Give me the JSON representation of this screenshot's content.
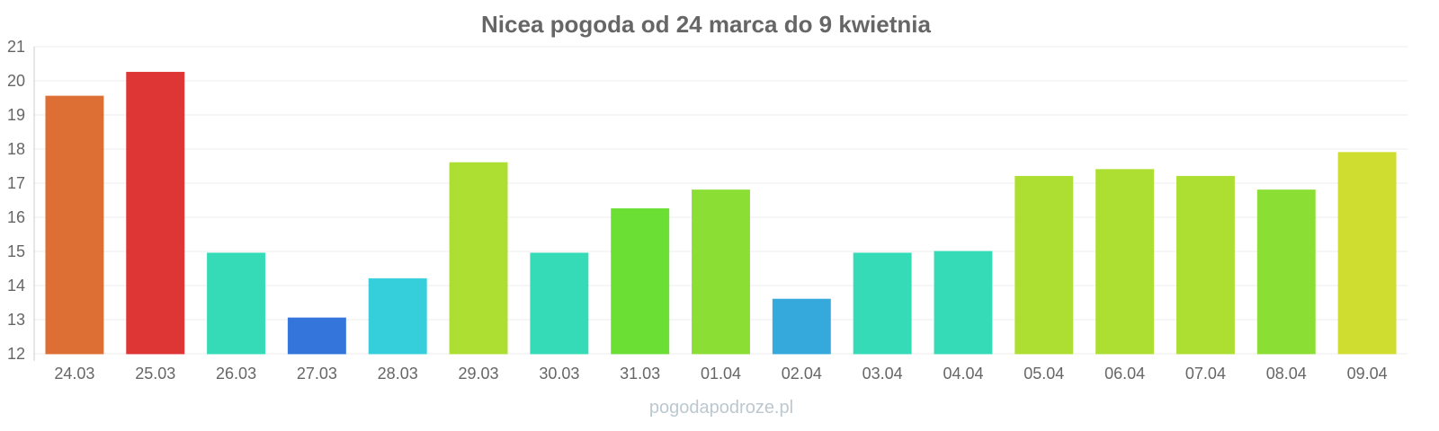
{
  "chart_data": {
    "type": "bar",
    "title": "Nicea pogoda od 24 marca do 9 kwietnia",
    "xlabel": "",
    "ylabel": "",
    "ylim": [
      12,
      21
    ],
    "yticks": [
      12,
      13,
      14,
      15,
      16,
      17,
      18,
      19,
      20,
      21
    ],
    "grid": true,
    "categories": [
      "24.03",
      "25.03",
      "26.03",
      "27.03",
      "28.03",
      "29.03",
      "30.03",
      "31.03",
      "01.04",
      "02.04",
      "03.04",
      "04.04",
      "05.04",
      "06.04",
      "07.04",
      "08.04",
      "09.04"
    ],
    "values": [
      19.55,
      20.25,
      14.95,
      13.05,
      14.2,
      17.6,
      14.95,
      16.25,
      16.8,
      13.6,
      14.95,
      15.0,
      17.2,
      17.4,
      17.2,
      16.8,
      17.9
    ],
    "colors": [
      "#de6f34",
      "#de3535",
      "#35dbb7",
      "#3475dc",
      "#35cfdb",
      "#addf33",
      "#35dbb7",
      "#6bdf34",
      "#8bdf34",
      "#35a8dc",
      "#35dbb7",
      "#35dbb7",
      "#addf33",
      "#addf33",
      "#addf33",
      "#8bdf34",
      "#cfdd31"
    ]
  },
  "watermark": "pogodapodroze.pl"
}
